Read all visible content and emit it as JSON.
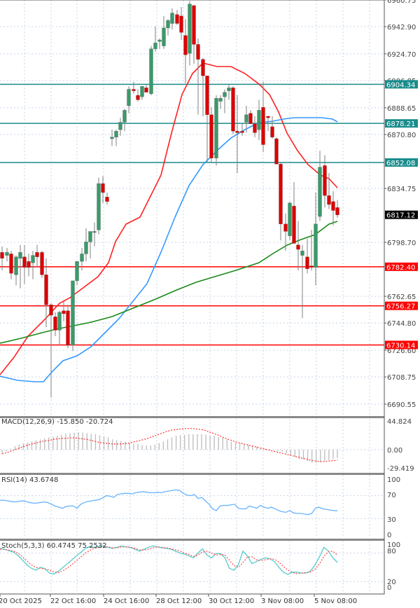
{
  "chart_data": [
    {
      "type": "candlestick",
      "pane": "price",
      "title": "",
      "y_ticks": [
        6960.75,
        6942.9,
        6924.7,
        6906.85,
        6888.65,
        6870.8,
        6834.75,
        6798.7,
        6762.65,
        6744.8,
        6726.6,
        6708.75,
        6690.55
      ],
      "ylim": [
        6685,
        6962
      ],
      "current_price": {
        "value": "6817.12",
        "bg": "#000000",
        "fg": "#ffffff"
      },
      "horizontal_levels": [
        {
          "value": 6904.34,
          "label": "6904.34",
          "color": "#1a8c8c"
        },
        {
          "value": 6878.21,
          "label": "6878.21",
          "color": "#1a8c8c"
        },
        {
          "value": 6852.08,
          "label": "6852.08",
          "color": "#1a8c8c"
        },
        {
          "value": 6782.4,
          "label": "6782.40",
          "color": "#ff0000"
        },
        {
          "value": 6756.27,
          "label": "6756.27",
          "color": "#ff0000"
        },
        {
          "value": 6730.14,
          "label": "6730.14",
          "color": "#ff0000"
        }
      ],
      "moving_averages": [
        {
          "name": "MA fast",
          "color": "#ff2020"
        },
        {
          "name": "MA medium",
          "color": "#3399ff"
        },
        {
          "name": "MA slow",
          "color": "#1a8a1a"
        }
      ],
      "candles_note": "Candles estimated from pixel positions (x px, open, high, low, close)",
      "candles": [
        [
          3,
          6792,
          6796,
          6780,
          6788
        ],
        [
          10,
          6790,
          6795,
          6786,
          6792
        ],
        [
          16,
          6791,
          6793,
          6774,
          6778
        ],
        [
          23,
          6777,
          6790,
          6770,
          6789
        ],
        [
          29,
          6788,
          6797,
          6768,
          6792
        ],
        [
          35,
          6789,
          6797,
          6771,
          6782
        ],
        [
          41,
          6786,
          6791,
          6776,
          6782
        ],
        [
          47,
          6785,
          6793,
          6774,
          6790
        ],
        [
          53,
          6792,
          6797,
          6782,
          6789
        ],
        [
          60,
          6792,
          6793,
          6775,
          6777
        ],
        [
          66,
          6777,
          6788,
          6742,
          6757
        ],
        [
          73,
          6757,
          6758,
          6695,
          6750
        ],
        [
          79,
          6749,
          6752,
          6736,
          6740
        ],
        [
          85,
          6740,
          6753,
          6730,
          6752
        ],
        [
          91,
          6753,
          6759,
          6746,
          6751
        ],
        [
          97,
          6753,
          6757,
          6728,
          6730
        ],
        [
          104,
          6730,
          6764,
          6726,
          6773
        ],
        [
          110,
          6773,
          6786,
          6770,
          6786
        ],
        [
          117,
          6786,
          6795,
          6780,
          6791
        ],
        [
          123,
          6791,
          6808,
          6786,
          6799
        ],
        [
          129,
          6799,
          6806,
          6788,
          6806
        ],
        [
          135,
          6806,
          6812,
          6796,
          6806
        ],
        [
          141,
          6807,
          6842,
          6804,
          6838
        ],
        [
          147,
          6838,
          6843,
          6825,
          6832
        ],
        [
          153,
          6829,
          6832,
          6824,
          6826
        ],
        [
          160,
          6868,
          6874,
          6863,
          6869
        ],
        [
          166,
          6869,
          6874,
          6863,
          6873
        ],
        [
          172,
          6874,
          6882,
          6870,
          6879
        ],
        [
          178,
          6879,
          6888,
          6873,
          6887
        ],
        [
          184,
          6890,
          6903,
          6885,
          6901
        ],
        [
          191,
          6901,
          6906,
          6898,
          6900
        ],
        [
          197,
          6897,
          6901,
          6893,
          6894
        ],
        [
          203,
          6896,
          6902,
          6894,
          6903
        ],
        [
          209,
          6902,
          6904,
          6900,
          6899
        ],
        [
          216,
          6898,
          6930,
          6897,
          6928
        ],
        [
          222,
          6928,
          6943,
          6926,
          6932
        ],
        [
          228,
          6933,
          6935,
          6928,
          6934
        ],
        [
          234,
          6930,
          6950,
          6928,
          6942
        ],
        [
          240,
          6942,
          6948,
          6937,
          6947
        ],
        [
          246,
          6945,
          6955,
          6941,
          6952
        ],
        [
          253,
          6951,
          6954,
          6944,
          6945
        ],
        [
          259,
          6950,
          6956,
          6934,
          6939
        ],
        [
          265,
          6937,
          6948,
          6905,
          6924
        ],
        [
          271,
          6925,
          6960,
          6917,
          6958
        ],
        [
          277,
          6957,
          6956,
          6918,
          6931
        ],
        [
          283,
          6931,
          6935,
          6884,
          6921
        ],
        [
          290,
          6921,
          6922,
          6883,
          6910
        ],
        [
          296,
          6910,
          6903,
          6852,
          6884
        ],
        [
          302,
          6884,
          6889,
          6852,
          6855
        ],
        [
          309,
          6855,
          6897,
          6850,
          6895
        ],
        [
          315,
          6893,
          6897,
          6888,
          6895
        ],
        [
          321,
          6896,
          6901,
          6885,
          6899
        ],
        [
          327,
          6900,
          6904,
          6894,
          6902
        ],
        [
          333,
          6902,
          6903,
          6871,
          6873
        ],
        [
          339,
          6873,
          6897,
          6845,
          6872
        ],
        [
          346,
          6873,
          6878,
          6870,
          6872
        ],
        [
          352,
          6879,
          6890,
          6872,
          6884
        ],
        [
          358,
          6885,
          6887,
          6878,
          6878
        ],
        [
          364,
          6878,
          6883,
          6869,
          6872
        ],
        [
          370,
          6874,
          6894,
          6867,
          6887
        ],
        [
          376,
          6889,
          6906,
          6859,
          6864
        ],
        [
          383,
          6883,
          6882,
          6873,
          6882
        ],
        [
          389,
          6876,
          6883,
          6868,
          6869
        ],
        [
          395,
          6868,
          6869,
          6852,
          6851
        ],
        [
          401,
          6851,
          6852,
          6800,
          6811
        ],
        [
          408,
          6811,
          6818,
          6793,
          6806
        ],
        [
          414,
          6803,
          6826,
          6800,
          6825
        ],
        [
          420,
          6823,
          6839,
          6799,
          6798
        ],
        [
          426,
          6797,
          6813,
          6780,
          6794
        ],
        [
          432,
          6790,
          6797,
          6748,
          6793
        ],
        [
          439,
          6789,
          6801,
          6778,
          6781
        ],
        [
          445,
          6783,
          6807,
          6780,
          6782
        ],
        [
          451,
          6782,
          6832,
          6770,
          6811
        ],
        [
          457,
          6816,
          6860,
          6813,
          6849
        ],
        [
          464,
          6850,
          6857,
          6822,
          6830
        ],
        [
          470,
          6830,
          6845,
          6821,
          6824
        ],
        [
          476,
          6826,
          6833,
          6810,
          6820
        ],
        [
          482,
          6822,
          6827,
          6815,
          6817
        ]
      ],
      "x_tick_labels": [
        "20 Oct 2025",
        "22 Oct 16:00",
        "24 Oct 16:00",
        "28 Oct 12:00",
        "30 Oct 12:00",
        "3 Nov 08:00",
        "5 Nov 08:00"
      ]
    },
    {
      "type": "bar",
      "pane": "macd",
      "title": "MACD(12,26,9) -15.850 -20.724",
      "y_ticks": [
        "44.824",
        "0.00",
        "-29.419"
      ],
      "ylim": [
        -29.419,
        44.824
      ],
      "histogram_color": "#c0c0c0",
      "signal_color": "#ff3333",
      "histogram": [
        -8,
        -3,
        2,
        7,
        10,
        12,
        14,
        16,
        18,
        20,
        22,
        24,
        25,
        27,
        29,
        31,
        32,
        33,
        34,
        33,
        32,
        31,
        30,
        28,
        26,
        24,
        20,
        18,
        17,
        15,
        14,
        12,
        11,
        9,
        8,
        8,
        10,
        13,
        16,
        20,
        24,
        27,
        28,
        29,
        30,
        30,
        30,
        30,
        29,
        28,
        27,
        25,
        23,
        20,
        15,
        13,
        12,
        10,
        10,
        8,
        6,
        4,
        2,
        1,
        0,
        -2,
        -4,
        -7,
        -10,
        -14,
        -18,
        -19,
        -22,
        -25,
        -26,
        -24,
        -22,
        -20,
        -18,
        -16
      ],
      "signal": [
        -8,
        -6,
        -3,
        0,
        3,
        6,
        9,
        11,
        13,
        15,
        17,
        18,
        20,
        21,
        22,
        22,
        23,
        23,
        22,
        21,
        20,
        18,
        16,
        14,
        13,
        12,
        11,
        11,
        11,
        12,
        13,
        15,
        17,
        19,
        21,
        24,
        27,
        30,
        33,
        36,
        38,
        39,
        40,
        41,
        41,
        41,
        40,
        39,
        37,
        34,
        31,
        28,
        24,
        21,
        18,
        15,
        13,
        11,
        9,
        7,
        5,
        3,
        1,
        -1,
        -3,
        -5,
        -7,
        -9,
        -11,
        -13,
        -15,
        -17,
        -19,
        -21,
        -22,
        -23,
        -23,
        -22,
        -21,
        -20.724
      ]
    },
    {
      "type": "line",
      "pane": "rsi",
      "title": "RSI(14) 43.6748",
      "y_ticks": [
        "100",
        "70",
        "30",
        "0"
      ],
      "ylim": [
        0,
        100
      ],
      "color": "#66b3ff",
      "values": [
        62,
        62,
        61,
        60,
        59,
        60,
        61,
        60,
        58,
        57,
        57,
        58,
        59,
        58,
        55,
        52,
        50,
        48,
        51,
        52,
        52,
        48,
        55,
        58,
        60,
        61,
        62,
        63,
        66,
        70,
        69,
        67,
        72,
        73,
        74,
        74,
        73,
        75,
        76,
        77,
        76,
        75,
        75,
        76,
        75,
        77,
        78,
        79,
        80,
        79,
        74,
        71,
        70,
        72,
        65,
        67,
        61,
        55,
        47,
        44,
        52,
        53,
        53,
        54,
        55,
        48,
        47,
        47,
        52,
        50,
        48,
        53,
        50,
        48,
        50,
        47,
        44,
        42,
        41,
        44,
        40,
        39,
        39,
        38,
        37,
        39,
        48,
        50,
        47,
        46,
        45,
        44,
        43.6748
      ]
    },
    {
      "type": "line",
      "pane": "stochastic",
      "title": "Stoch(5,3,3) 60.4745 75.2532",
      "y_ticks": [
        "100",
        "80",
        "20",
        "0"
      ],
      "ylim": [
        0,
        100
      ],
      "series": [
        {
          "name": "%K",
          "color": "#55cccc",
          "values": [
            90,
            88,
            85,
            82,
            75,
            65,
            55,
            48,
            44,
            50,
            47,
            38,
            36,
            42,
            50,
            58,
            66,
            74,
            82,
            90,
            94,
            92,
            94,
            95,
            92,
            90,
            92,
            95,
            93,
            92,
            88,
            84,
            88,
            92,
            95,
            93,
            91,
            90,
            88,
            84,
            80,
            78,
            74,
            70,
            80,
            89,
            76,
            70,
            79,
            79,
            70,
            48,
            44,
            56,
            84,
            74,
            58,
            62,
            67,
            70,
            68,
            62,
            50,
            40,
            35,
            40,
            40,
            38,
            38,
            42,
            55,
            72,
            92,
            84,
            70,
            60.4745
          ]
        },
        {
          "name": "%D",
          "color": "#ff5555",
          "values": [
            88,
            88,
            86,
            84,
            80,
            72,
            63,
            55,
            50,
            48,
            47,
            44,
            40,
            39,
            43,
            49,
            56,
            64,
            72,
            80,
            86,
            90,
            92,
            93,
            93,
            91,
            91,
            93,
            93,
            92,
            90,
            87,
            86,
            88,
            91,
            93,
            92,
            91,
            89,
            87,
            84,
            80,
            77,
            73,
            76,
            82,
            84,
            80,
            76,
            77,
            76,
            65,
            54,
            50,
            60,
            72,
            72,
            66,
            64,
            66,
            68,
            67,
            61,
            52,
            44,
            39,
            37,
            38,
            39,
            40,
            46,
            57,
            73,
            83,
            84,
            75.2532
          ]
        }
      ]
    }
  ],
  "axis": {
    "price_labels": [
      "6960.75",
      "6942.90",
      "6924.70",
      "6906.85",
      "6888.65",
      "6870.80",
      "6834.75",
      "6798.70",
      "6762.65",
      "6744.80",
      "6726.60",
      "6708.75",
      "6690.55"
    ],
    "macd_labels": [
      "44.824",
      "0.00",
      "-29.419"
    ],
    "rsi_labels": [
      "100",
      "70",
      "30",
      "0"
    ],
    "stoch_labels": [
      "100",
      "80",
      "20",
      "0"
    ],
    "time_labels": [
      "20 Oct 2025",
      "22 Oct 16:00",
      "24 Oct 16:00",
      "28 Oct 12:00",
      "30 Oct 12:00",
      "3 Nov 08:00",
      "5 Nov 08:00"
    ]
  },
  "indicators": {
    "macd_title": "MACD(12,26,9) -15.850 -20.724",
    "rsi_title": "RSI(14) 43.6748",
    "stoch_title": "Stoch(5,3,3) 60.4745 75.2532"
  },
  "colors": {
    "bull": "#3a9a6a",
    "bear": "#dd0000",
    "wick": "#808080",
    "grid": "#c8d4e8",
    "support": "#ff0000",
    "resistance": "#1a8c8c",
    "ma_fast": "#ff2020",
    "ma_mid": "#3399ff",
    "ma_slow": "#1a8a1a"
  }
}
